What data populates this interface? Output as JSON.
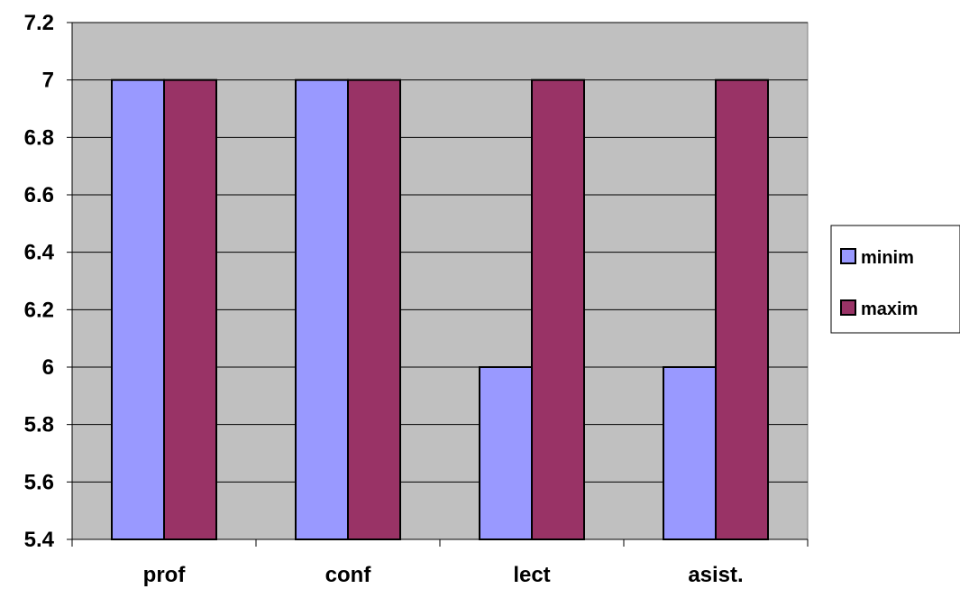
{
  "chart_data": {
    "type": "bar",
    "title": "",
    "xlabel": "",
    "ylabel": "",
    "categories": [
      "prof",
      "conf",
      "lect",
      "asist."
    ],
    "series": [
      {
        "name": "minim",
        "values": [
          7,
          7,
          6,
          6
        ],
        "color": "#9999ff"
      },
      {
        "name": "maxim",
        "values": [
          7,
          7,
          7,
          7
        ],
        "color": "#993366"
      }
    ],
    "ylim": [
      5.4,
      7.2
    ],
    "yticks": [
      "5.4",
      "5.6",
      "5.8",
      "6",
      "6.2",
      "6.4",
      "6.6",
      "6.8",
      "7",
      "7.2"
    ],
    "grid": true,
    "plot_background": "#c0c0c0",
    "legend_position": "right"
  }
}
